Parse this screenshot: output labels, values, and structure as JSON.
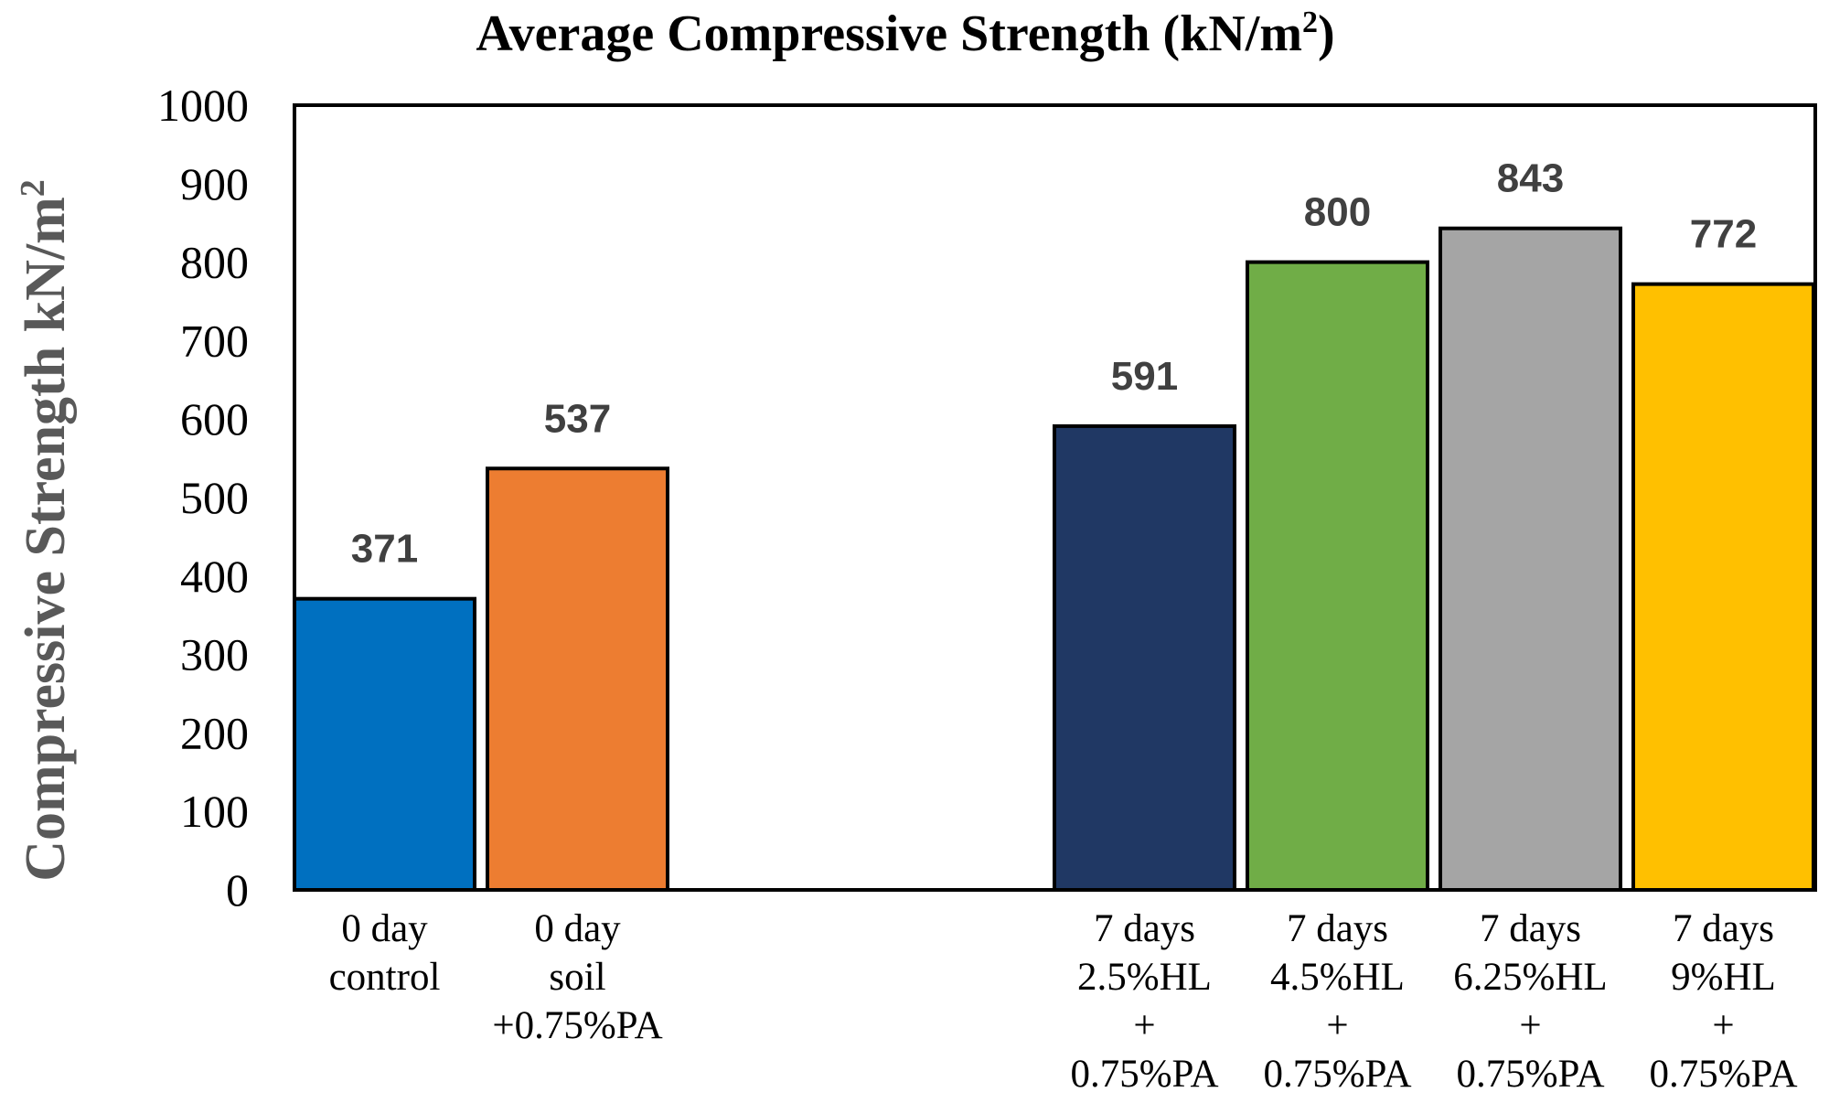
{
  "chart_data": {
    "type": "bar",
    "title": "Average Compressive Strength (kN/m",
    "title_superscript": "2",
    "title_suffix": ")",
    "ylabel": "Compressive Strength kN/m",
    "ylabel_superscript": "2",
    "xlabel": "",
    "ylim": [
      0,
      1000
    ],
    "yticks": [
      "0",
      "100",
      "200",
      "300",
      "400",
      "500",
      "600",
      "700",
      "800",
      "900",
      "1000"
    ],
    "grid": false,
    "legend": "none",
    "categories": [
      {
        "lines": [
          "0 day",
          "control"
        ]
      },
      {
        "lines": [
          "0 day",
          "soil",
          "+0.75%PA"
        ]
      },
      {
        "lines": [
          "7 days",
          "2.5%HL",
          "+",
          "0.75%PA"
        ]
      },
      {
        "lines": [
          "7 days",
          "4.5%HL",
          "+",
          "0.75%PA"
        ]
      },
      {
        "lines": [
          "7 days",
          "6.25%HL",
          "+",
          "0.75%PA"
        ]
      },
      {
        "lines": [
          "7 days",
          "9%HL",
          "+",
          "0.75%PA"
        ]
      }
    ],
    "values": [
      371,
      537,
      591,
      800,
      843,
      772
    ],
    "data_labels": [
      "371",
      "537",
      "591",
      "800",
      "843",
      "772"
    ],
    "colors": [
      "#0070C0",
      "#ED7D31",
      "#203864",
      "#70AD47",
      "#A5A5A5",
      "#FFC000"
    ]
  }
}
